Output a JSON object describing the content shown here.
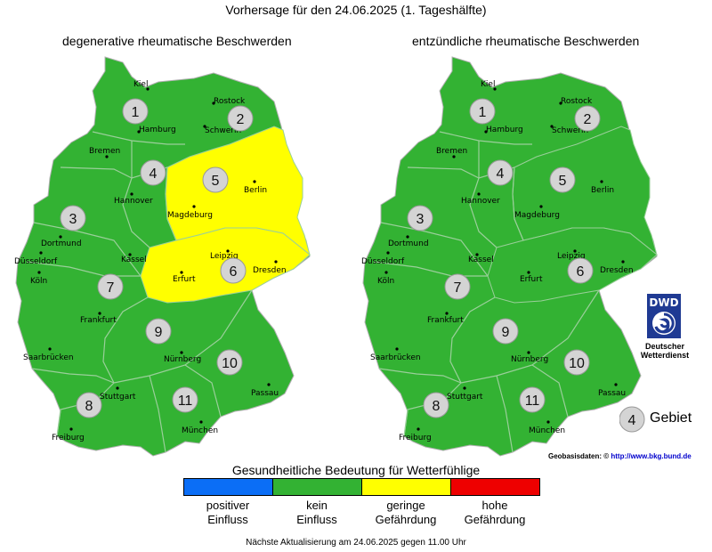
{
  "title": "Vorhersage für den 24.06.2025 (1. Tageshälfte)",
  "maps": [
    {
      "title": "degenerative rheumatische Beschwerden",
      "region_levels": {
        "1": "kein Einfluss",
        "2": "kein Einfluss",
        "3": "kein Einfluss",
        "4": "kein Einfluss",
        "5": "geringe Gefährdung",
        "6": "geringe Gefährdung",
        "7": "kein Einfluss",
        "8": "kein Einfluss",
        "9": "kein Einfluss",
        "10": "kein Einfluss",
        "11": "kein Einfluss"
      }
    },
    {
      "title": "entzündliche rheumatische Beschwerden",
      "region_levels": {
        "1": "kein Einfluss",
        "2": "kein Einfluss",
        "3": "kein Einfluss",
        "4": "kein Einfluss",
        "5": "kein Einfluss",
        "6": "kein Einfluss",
        "7": "kein Einfluss",
        "8": "kein Einfluss",
        "9": "kein Einfluss",
        "10": "kein Einfluss",
        "11": "kein Einfluss"
      }
    }
  ],
  "regions": [
    "1",
    "2",
    "3",
    "4",
    "5",
    "6",
    "7",
    "8",
    "9",
    "10",
    "11"
  ],
  "cities": [
    "Kiel",
    "Rostock",
    "Hamburg",
    "Schwerin",
    "Bremen",
    "Hannover",
    "Berlin",
    "Magdeburg",
    "Dortmund",
    "Düsseldorf",
    "Kassel",
    "Leipzig",
    "Dresden",
    "Köln",
    "Erfurt",
    "Frankfurt",
    "Saarbrücken",
    "Nürnberg",
    "Passau",
    "Stuttgart",
    "München",
    "Freiburg"
  ],
  "legend": {
    "title": "Gesundheitliche Bedeutung für Wetterfühlige",
    "items": [
      {
        "label_line1": "positiver",
        "label_line2": "Einfluss",
        "color": "#0b6ef6"
      },
      {
        "label_line1": "kein",
        "label_line2": "Einfluss",
        "color": "#33b233"
      },
      {
        "label_line1": "geringe",
        "label_line2": "Gefährdung",
        "color": "#ffff00"
      },
      {
        "label_line1": "hohe",
        "label_line2": "Gefährdung",
        "color": "#ee0000"
      }
    ]
  },
  "region_key": {
    "number": "4",
    "label": "Gebiet"
  },
  "geodata": {
    "label": "Geobasisdaten: ©",
    "link": "http://www.bkg.bund.de"
  },
  "dwd": {
    "logo_text": "DWD",
    "name_line1": "Deutscher",
    "name_line2": "Wetterdienst"
  },
  "footer": "Nächste Aktualisierung am 24.06.2025 gegen 11.00 Uhr",
  "colors": {
    "green": "#33b233",
    "yellow": "#ffff00",
    "border": "#9acf9a"
  }
}
